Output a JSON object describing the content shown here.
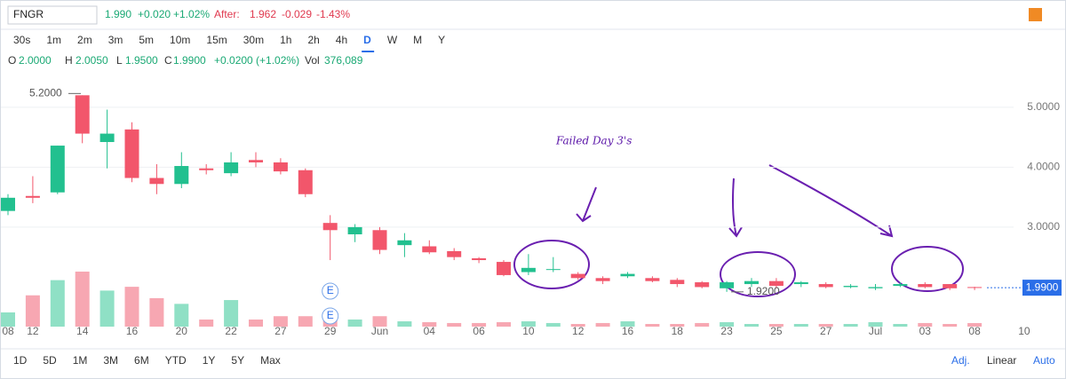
{
  "header": {
    "symbol": "FNGR",
    "price": "1.990",
    "change": "+0.020",
    "change_pct": "+1.02%",
    "after_label": "After:",
    "after_price": "1.962",
    "after_change": "-0.029",
    "after_change_pct": "-1.43%"
  },
  "timeframes": [
    "30s",
    "1m",
    "2m",
    "3m",
    "5m",
    "10m",
    "15m",
    "30m",
    "1h",
    "2h",
    "4h",
    "D",
    "W",
    "M",
    "Y"
  ],
  "ohlc_strip": {
    "o_label": "O",
    "o": "2.0000",
    "h_label": "H",
    "h": "2.0050",
    "l_label": "L",
    "l": "1.9500",
    "c_label": "C",
    "c": "1.9900",
    "change": "+0.0200 (+1.02%)",
    "vol_label": "Vol",
    "vol": "376,089"
  },
  "ranges": [
    "1D",
    "5D",
    "1M",
    "3M",
    "6M",
    "YTD",
    "1Y",
    "5Y",
    "Max"
  ],
  "footer": {
    "adj": "Adj.",
    "scale": "Linear",
    "auto": "Auto"
  },
  "earnings_markers": [
    "E",
    "E"
  ],
  "chart_data": {
    "type": "candlestick",
    "annotation": "Failed Day 3's",
    "categories": [
      "08",
      "12",
      null,
      "14",
      null,
      "16",
      null,
      "20",
      null,
      "22",
      null,
      "27",
      null,
      "29",
      null,
      "Jun",
      null,
      "04",
      null,
      "06",
      null,
      "10",
      null,
      "12",
      null,
      "16",
      null,
      "18",
      null,
      "23",
      null,
      "25",
      null,
      "27",
      null,
      "Jul",
      null,
      "03",
      null,
      "08",
      null,
      "10"
    ],
    "open": [
      3.27,
      3.52,
      3.58,
      5.2,
      4.42,
      4.63,
      3.82,
      3.72,
      3.98,
      3.9,
      4.12,
      4.08,
      3.95,
      3.07,
      2.88,
      2.95,
      2.7,
      2.68,
      2.6,
      2.48,
      2.42,
      2.25,
      2.3,
      2.22,
      2.15,
      2.18,
      2.15,
      2.12,
      2.08,
      1.98,
      2.05,
      2.1,
      2.05,
      2.05,
      2.0,
      1.98,
      2.02,
      2.05,
      2.05,
      2.0,
      null,
      null
    ],
    "high": [
      3.55,
      3.85,
      4.36,
      5.2,
      4.96,
      4.75,
      4.05,
      4.25,
      4.05,
      4.25,
      4.25,
      4.15,
      3.98,
      3.2,
      3.05,
      3.0,
      2.9,
      2.78,
      2.65,
      2.5,
      2.45,
      2.55,
      2.5,
      2.25,
      2.18,
      2.25,
      2.18,
      2.15,
      2.1,
      2.1,
      2.15,
      2.15,
      2.1,
      2.08,
      2.05,
      2.05,
      2.08,
      2.08,
      2.05,
      2.005,
      null,
      null
    ],
    "low": [
      3.2,
      3.4,
      3.55,
      4.4,
      3.98,
      3.75,
      3.55,
      3.65,
      3.88,
      3.85,
      4.0,
      3.88,
      3.5,
      2.45,
      2.75,
      2.55,
      2.5,
      2.55,
      2.45,
      2.4,
      2.18,
      2.2,
      2.25,
      2.12,
      2.05,
      2.15,
      2.08,
      2.0,
      1.98,
      1.92,
      2.0,
      1.98,
      2.0,
      1.98,
      1.98,
      1.95,
      2.0,
      1.98,
      1.95,
      1.95,
      null,
      null
    ],
    "close": [
      3.49,
      3.49,
      4.36,
      4.56,
      4.56,
      3.82,
      3.72,
      4.02,
      3.95,
      4.08,
      4.08,
      3.93,
      3.55,
      2.95,
      3.0,
      2.62,
      2.78,
      2.58,
      2.5,
      2.45,
      2.2,
      2.32,
      2.3,
      2.15,
      2.1,
      2.22,
      2.1,
      2.05,
      2.0,
      2.08,
      2.1,
      2.02,
      2.08,
      2.0,
      2.02,
      2.0,
      2.05,
      2.0,
      1.98,
      1.99,
      null,
      null
    ],
    "volume": [
      1500000,
      3300000,
      4900000,
      5800000,
      3800000,
      4200000,
      3000000,
      2400000,
      750000,
      2800000,
      750000,
      1100000,
      1100000,
      950000,
      750000,
      1100000,
      560000,
      470000,
      380000,
      380000,
      470000,
      560000,
      380000,
      280000,
      380000,
      560000,
      280000,
      280000,
      380000,
      470000,
      280000,
      280000,
      280000,
      280000,
      280000,
      470000,
      280000,
      380000,
      280000,
      376089,
      null,
      null
    ],
    "up_color": "#22c08f",
    "down_color": "#f2566b",
    "ylim": [
      1.34,
      5.59
    ],
    "yticks": [
      {
        "value": 3,
        "label": "3.0000"
      },
      {
        "value": 4,
        "label": "4.0000"
      },
      {
        "value": 5,
        "label": "5.0000"
      }
    ],
    "high_marker": {
      "value": 5.2,
      "label": "5.2000"
    },
    "low_marker": {
      "value": 1.92,
      "label": "1.9200"
    },
    "last_price": {
      "value": 1.99,
      "label": "1.9900"
    },
    "grid": true
  }
}
